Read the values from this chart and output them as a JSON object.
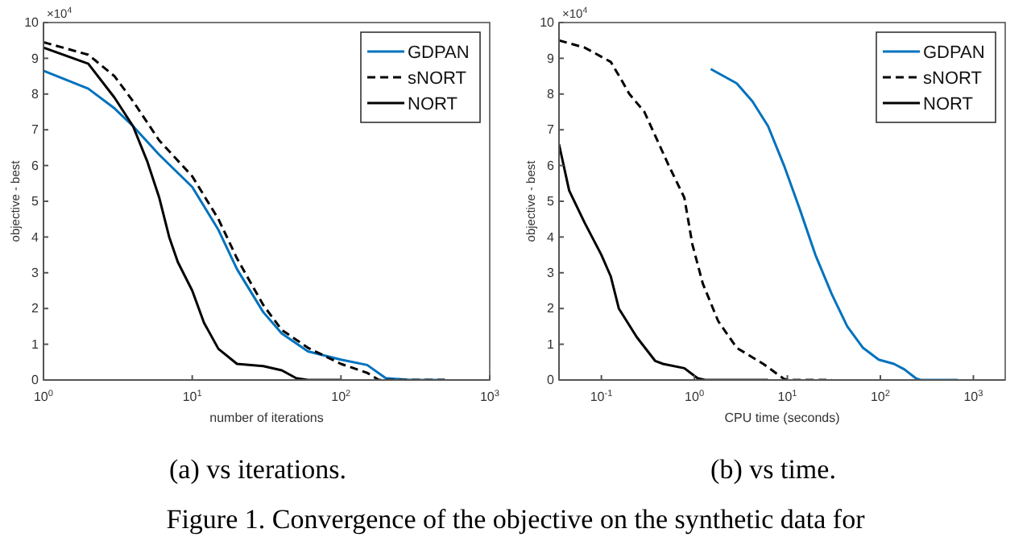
{
  "chart_data": [
    {
      "type": "line",
      "xlabel": "number of iterations",
      "ylabel": "objective - best",
      "log": "x",
      "xlim": [
        1,
        1000
      ],
      "ylim": [
        0,
        10
      ],
      "xticks": [
        {
          "value": 1,
          "label": "10$^{0}$"
        },
        {
          "value": 10,
          "label": "10$^{1}$"
        },
        {
          "value": 100,
          "label": "10$^{2}$"
        },
        {
          "value": 1000,
          "label": "10$^{3}$"
        }
      ],
      "yticks": [
        0,
        1,
        2,
        3,
        4,
        5,
        6,
        7,
        8,
        9,
        10
      ],
      "grid": false,
      "legend": "top right",
      "annotations": [
        "×10$^{4}$",
        "(a)  vs iterations.",
        "Figure 1. Convergence of the objective on the synthetic data for"
      ],
      "series": [
        {
          "name": "GDPAN",
          "color": "#0072bd",
          "line_style": "solid",
          "x": [
            1,
            2,
            3,
            4,
            6,
            10,
            15,
            20,
            30,
            40,
            60,
            100,
            150,
            200,
            300,
            500
          ],
          "values": [
            8.65,
            8.15,
            7.6,
            7.1,
            6.3,
            5.4,
            4.2,
            3.1,
            1.9,
            1.3,
            0.8,
            0.57,
            0.42,
            0.05,
            0,
            0
          ]
        },
        {
          "name": "sNORT",
          "color": "#000000",
          "line_style": "dashed",
          "x": [
            1,
            2,
            3,
            4,
            6,
            10,
            15,
            20,
            30,
            40,
            60,
            100,
            150,
            180,
            300,
            500
          ],
          "values": [
            9.45,
            9.1,
            8.5,
            7.8,
            6.7,
            5.7,
            4.5,
            3.4,
            2.1,
            1.4,
            0.9,
            0.45,
            0.2,
            0,
            0,
            0
          ]
        },
        {
          "name": "NORT",
          "color": "#000000",
          "line_style": "solid",
          "x": [
            1,
            2,
            3,
            4,
            5,
            6,
            7,
            8,
            10,
            12,
            15,
            20,
            30,
            40,
            50,
            60,
            100
          ],
          "values": [
            9.3,
            8.85,
            7.9,
            7.1,
            6.1,
            5.1,
            4.0,
            3.3,
            2.5,
            1.6,
            0.87,
            0.45,
            0.39,
            0.27,
            0.05,
            0,
            0
          ]
        }
      ]
    },
    {
      "type": "line",
      "xlabel": "CPU time (seconds)",
      "ylabel": "objective - best",
      "log": "x",
      "xlim": [
        0.035,
        2200
      ],
      "ylim": [
        0,
        10
      ],
      "xticks": [
        {
          "value": 0.1,
          "label": "10$^{-1}$"
        },
        {
          "value": 1,
          "label": "10$^{0}$"
        },
        {
          "value": 10,
          "label": "10$^{1}$"
        },
        {
          "value": 100,
          "label": "10$^{2}$"
        },
        {
          "value": 1000,
          "label": "10$^{3}$"
        }
      ],
      "yticks": [
        0,
        1,
        2,
        3,
        4,
        5,
        6,
        7,
        8,
        9,
        10
      ],
      "grid": false,
      "legend": "top right",
      "annotations": [
        "×10$^{4}$",
        "(b)  vs time."
      ],
      "series": [
        {
          "name": "GDPAN",
          "color": "#0072bd",
          "line_style": "solid",
          "x": [
            1.5,
            2.85,
            4.2,
            6.2,
            9.2,
            13.5,
            20,
            30,
            44,
            65,
            96,
            140,
            180,
            240,
            270,
            680
          ],
          "values": [
            8.7,
            8.3,
            7.8,
            7.1,
            6.0,
            4.8,
            3.5,
            2.4,
            1.5,
            0.9,
            0.57,
            0.45,
            0.3,
            0.05,
            0,
            0
          ]
        },
        {
          "name": "sNORT",
          "color": "#000000",
          "line_style": "dashed",
          "x": [
            0.035,
            0.066,
            0.126,
            0.164,
            0.2,
            0.29,
            0.53,
            0.78,
            0.95,
            1.23,
            1.8,
            2.85,
            5.5,
            9.2,
            10.5,
            30
          ],
          "values": [
            9.5,
            9.3,
            8.9,
            8.4,
            8.0,
            7.5,
            6.0,
            5.1,
            3.8,
            2.7,
            1.65,
            0.9,
            0.45,
            0.03,
            0,
            0
          ]
        },
        {
          "name": "NORT",
          "color": "#000000",
          "line_style": "solid",
          "x": [
            0.035,
            0.045,
            0.066,
            0.1,
            0.126,
            0.154,
            0.24,
            0.38,
            0.46,
            0.78,
            1.08,
            1.3,
            6.2
          ],
          "values": [
            6.6,
            5.3,
            4.4,
            3.5,
            2.9,
            2.0,
            1.2,
            0.53,
            0.45,
            0.33,
            0.05,
            0,
            0
          ]
        }
      ]
    }
  ]
}
